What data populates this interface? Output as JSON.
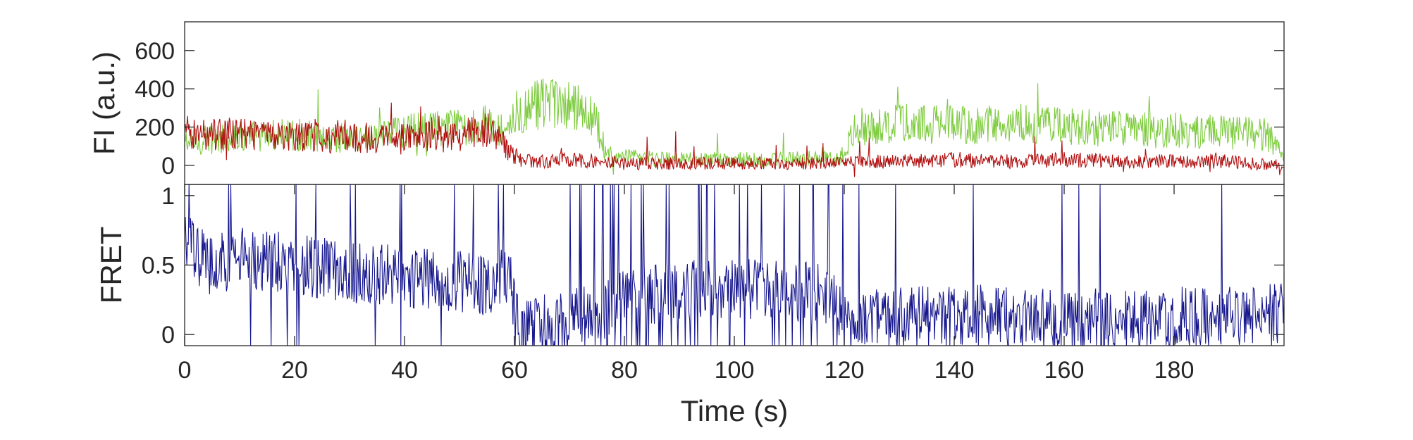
{
  "chart_data": [
    {
      "type": "line",
      "title": "",
      "ylabel": "FI (a.u.)",
      "xlabel": "",
      "xlim": [
        0,
        200
      ],
      "ylim": [
        -100,
        750
      ],
      "y_ticks": [
        0,
        200,
        400,
        600
      ],
      "y_tick_labels": [
        "0",
        "200",
        "400",
        "600"
      ],
      "grid": false,
      "legend": "none",
      "series": [
        {
          "color": "#7ecb3f",
          "x": [
            0,
            10,
            20,
            30,
            40,
            50,
            55,
            58,
            60,
            65,
            70,
            75,
            76,
            80,
            90,
            100,
            110,
            118,
            120,
            122,
            130,
            140,
            150,
            160,
            170,
            180,
            190,
            197,
            200
          ],
          "y": [
            120,
            150,
            160,
            140,
            180,
            200,
            220,
            180,
            270,
            320,
            300,
            260,
            60,
            40,
            30,
            30,
            30,
            40,
            60,
            200,
            220,
            210,
            220,
            200,
            190,
            180,
            170,
            160,
            40
          ]
        },
        {
          "color": "#b00f0f",
          "x": [
            0,
            10,
            20,
            30,
            40,
            50,
            55,
            58,
            60,
            62,
            70,
            76,
            80,
            90,
            100,
            110,
            120,
            130,
            140,
            150,
            160,
            170,
            180,
            190,
            200
          ],
          "y": [
            170,
            160,
            150,
            140,
            150,
            150,
            190,
            110,
            50,
            20,
            30,
            20,
            10,
            10,
            10,
            10,
            20,
            20,
            30,
            20,
            30,
            20,
            20,
            20,
            0
          ]
        }
      ]
    },
    {
      "type": "line",
      "title": "",
      "ylabel": "FRET",
      "xlabel": "Time (s)",
      "xlim": [
        0,
        200
      ],
      "ylim": [
        -0.08,
        1.08
      ],
      "x_ticks": [
        0,
        20,
        40,
        60,
        80,
        100,
        120,
        140,
        160,
        180
      ],
      "x_tick_labels": [
        "0",
        "20",
        "40",
        "60",
        "80",
        "100",
        "120",
        "140",
        "160",
        "180"
      ],
      "y_ticks": [
        0,
        0.5,
        1
      ],
      "y_tick_labels": [
        "0",
        "0.5",
        "1"
      ],
      "grid": false,
      "legend": "none",
      "series": [
        {
          "color": "#16168e",
          "x": [
            0,
            5,
            10,
            20,
            30,
            40,
            50,
            55,
            59,
            60,
            61,
            70,
            76,
            80,
            90,
            100,
            110,
            118,
            120,
            130,
            140,
            150,
            160,
            170,
            180,
            190,
            200
          ],
          "y": [
            0.65,
            0.5,
            0.55,
            0.5,
            0.45,
            0.42,
            0.38,
            0.35,
            0.45,
            0.15,
            0.05,
            0.1,
            0.15,
            0.3,
            0.3,
            0.35,
            0.3,
            0.3,
            0.1,
            0.12,
            0.15,
            0.12,
            0.1,
            0.12,
            0.12,
            0.12,
            0.15
          ]
        }
      ]
    }
  ]
}
